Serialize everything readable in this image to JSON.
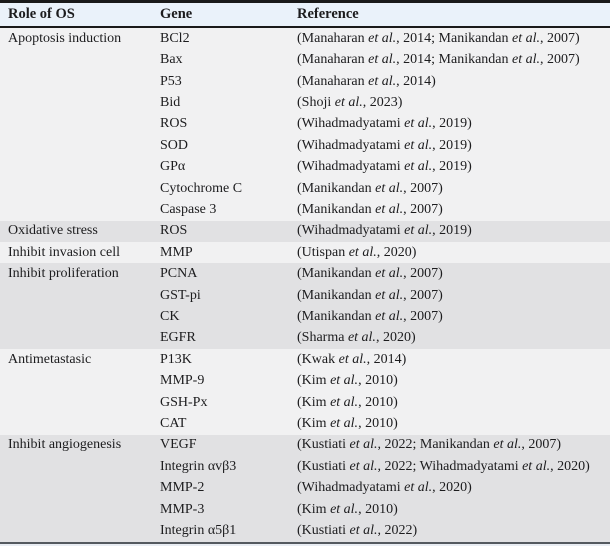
{
  "table": {
    "columns": [
      {
        "key": "role",
        "label": "Role of OS"
      },
      {
        "key": "gene",
        "label": "Gene"
      },
      {
        "key": "reference",
        "label": "Reference"
      }
    ],
    "groups": [
      {
        "role": "Apoptosis induction",
        "rows": [
          {
            "gene": "BCl2",
            "reference": "(Manaharan et al., 2014; Manikandan et al., 2007)"
          },
          {
            "gene": "Bax",
            "reference": "(Manaharan et al., 2014; Manikandan et al., 2007)"
          },
          {
            "gene": "P53",
            "reference": "(Manaharan et al., 2014)"
          },
          {
            "gene": "Bid",
            "reference": "(Shoji et al., 2023)"
          },
          {
            "gene": "ROS",
            "reference": "(Wihadmadyatami et al., 2019)"
          },
          {
            "gene": "SOD",
            "reference": "(Wihadmadyatami et al., 2019)"
          },
          {
            "gene": "GPα",
            "reference": "(Wihadmadyatami et al., 2019)"
          },
          {
            "gene": "Cytochrome C",
            "reference": "(Manikandan et al., 2007)"
          },
          {
            "gene": "Caspase 3",
            "reference": "(Manikandan et al., 2007)"
          }
        ]
      },
      {
        "role": "Oxidative stress",
        "rows": [
          {
            "gene": "ROS",
            "reference": "(Wihadmadyatami et al., 2019)"
          }
        ]
      },
      {
        "role": "Inhibit invasion cell",
        "rows": [
          {
            "gene": "MMP",
            "reference": "(Utispan et al., 2020)"
          }
        ]
      },
      {
        "role": "Inhibit proliferation",
        "rows": [
          {
            "gene": "PCNA",
            "reference": "(Manikandan et al., 2007)"
          },
          {
            "gene": "GST-pi",
            "reference": "(Manikandan et al., 2007)"
          },
          {
            "gene": "CK",
            "reference": "(Manikandan et al., 2007)"
          },
          {
            "gene": "EGFR",
            "reference": "(Sharma et al., 2020)"
          }
        ]
      },
      {
        "role": "Antimetastasic",
        "rows": [
          {
            "gene": "P13K",
            "reference": "(Kwak et al., 2014)"
          },
          {
            "gene": "MMP-9",
            "reference": "(Kim et al., 2010)"
          },
          {
            "gene": "GSH-Px",
            "reference": "(Kim et al., 2010)"
          },
          {
            "gene": "CAT",
            "reference": "(Kim et al., 2010)"
          }
        ]
      },
      {
        "role": "Inhibit angiogenesis",
        "rows": [
          {
            "gene": "VEGF",
            "reference": "(Kustiati et al., 2022; Manikandan et al., 2007)"
          },
          {
            "gene": "Integrin αvβ3",
            "reference": "(Kustiati et al., 2022; Wihadmadyatami et al., 2020)"
          },
          {
            "gene": "MMP-2",
            "reference": "(Wihadmadyatami et al., 2020)"
          },
          {
            "gene": "MMP-3",
            "reference": "(Kim et al., 2010)"
          },
          {
            "gene": "Integrin α5β1",
            "reference": "(Kustiati et al., 2022)"
          }
        ]
      }
    ],
    "italic_phrase": "et al."
  },
  "colors": {
    "header_bg": "#eaf2fa",
    "row_bg": "#f1f1f2",
    "stripe_bg": "#e1e1e3",
    "border_strong": "#1a1a1a",
    "border_bottom": "#54595f",
    "text": "#1c1c1e"
  }
}
